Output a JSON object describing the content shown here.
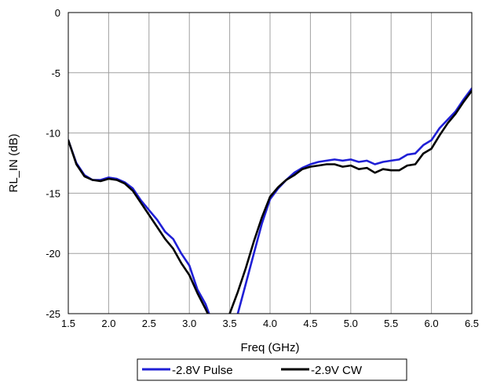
{
  "chart_data": {
    "type": "line",
    "xlabel": "Freq (GHz)",
    "ylabel": "RL_IN (dB)",
    "xlim": [
      1.5,
      6.5
    ],
    "ylim": [
      -25,
      0
    ],
    "grid": true,
    "legend_placement": "bottom-center",
    "xticks": [
      1.5,
      2.0,
      2.5,
      3.0,
      3.5,
      4.0,
      4.5,
      5.0,
      5.5,
      6.0,
      6.5
    ],
    "xtick_labels": [
      "1.5",
      "2.0",
      "2.5",
      "3.0",
      "3.5",
      "4.0",
      "4.5",
      "5.0",
      "5.5",
      "6.0",
      "6.5"
    ],
    "yticks": [
      0,
      -5,
      -10,
      -15,
      -20,
      -25
    ],
    "ytick_labels": [
      "0",
      "-5",
      "-10",
      "-15",
      "-20",
      "-25"
    ],
    "series": [
      {
        "name": "-2.8V Pulse",
        "color": "#1f1fd6",
        "x": [
          1.5,
          1.6,
          1.7,
          1.8,
          1.9,
          2.0,
          2.1,
          2.2,
          2.3,
          2.4,
          2.5,
          2.6,
          2.7,
          2.8,
          2.9,
          3.0,
          3.1,
          3.2,
          3.3,
          3.4,
          3.5,
          3.6,
          3.7,
          3.8,
          3.9,
          4.0,
          4.1,
          4.2,
          4.3,
          4.4,
          4.5,
          4.6,
          4.7,
          4.8,
          4.9,
          5.0,
          5.1,
          5.2,
          5.3,
          5.4,
          5.5,
          5.6,
          5.7,
          5.8,
          5.9,
          6.0,
          6.1,
          6.2,
          6.3,
          6.4,
          6.5
        ],
        "y": [
          -10.6,
          -12.5,
          -13.5,
          -13.9,
          -13.9,
          -13.7,
          -13.8,
          -14.1,
          -14.6,
          -15.6,
          -16.4,
          -17.2,
          -18.2,
          -18.8,
          -20.0,
          -21.0,
          -23.0,
          -24.2,
          -26.0,
          -27.8,
          -27.5,
          -25.0,
          -22.5,
          -20.0,
          -17.5,
          -15.5,
          -14.6,
          -13.9,
          -13.3,
          -12.9,
          -12.6,
          -12.4,
          -12.3,
          -12.2,
          -12.3,
          -12.2,
          -12.4,
          -12.3,
          -12.6,
          -12.4,
          -12.3,
          -12.2,
          -11.8,
          -11.7,
          -11.0,
          -10.6,
          -9.6,
          -8.9,
          -8.2,
          -7.2,
          -6.3
        ]
      },
      {
        "name": "-2.9V CW",
        "color": "#000000",
        "x": [
          1.5,
          1.6,
          1.7,
          1.8,
          1.9,
          2.0,
          2.1,
          2.2,
          2.3,
          2.4,
          2.5,
          2.6,
          2.7,
          2.8,
          2.9,
          3.0,
          3.1,
          3.2,
          3.3,
          3.4,
          3.5,
          3.6,
          3.7,
          3.8,
          3.9,
          4.0,
          4.1,
          4.2,
          4.3,
          4.4,
          4.5,
          4.6,
          4.7,
          4.8,
          4.9,
          5.0,
          5.1,
          5.2,
          5.3,
          5.4,
          5.5,
          5.6,
          5.7,
          5.8,
          5.9,
          6.0,
          6.1,
          6.2,
          6.3,
          6.4,
          6.5
        ],
        "y": [
          -10.6,
          -12.6,
          -13.6,
          -13.9,
          -14.0,
          -13.8,
          -13.9,
          -14.2,
          -14.8,
          -15.8,
          -16.8,
          -17.8,
          -18.8,
          -19.6,
          -20.8,
          -21.8,
          -23.3,
          -24.6,
          -26.0,
          -26.0,
          -25.0,
          -23.2,
          -21.2,
          -19.0,
          -17.0,
          -15.3,
          -14.5,
          -13.9,
          -13.5,
          -13.0,
          -12.8,
          -12.7,
          -12.6,
          -12.6,
          -12.8,
          -12.7,
          -13.0,
          -12.9,
          -13.3,
          -13.0,
          -13.1,
          -13.1,
          -12.7,
          -12.6,
          -11.7,
          -11.3,
          -10.2,
          -9.2,
          -8.4,
          -7.4,
          -6.5
        ]
      }
    ]
  }
}
